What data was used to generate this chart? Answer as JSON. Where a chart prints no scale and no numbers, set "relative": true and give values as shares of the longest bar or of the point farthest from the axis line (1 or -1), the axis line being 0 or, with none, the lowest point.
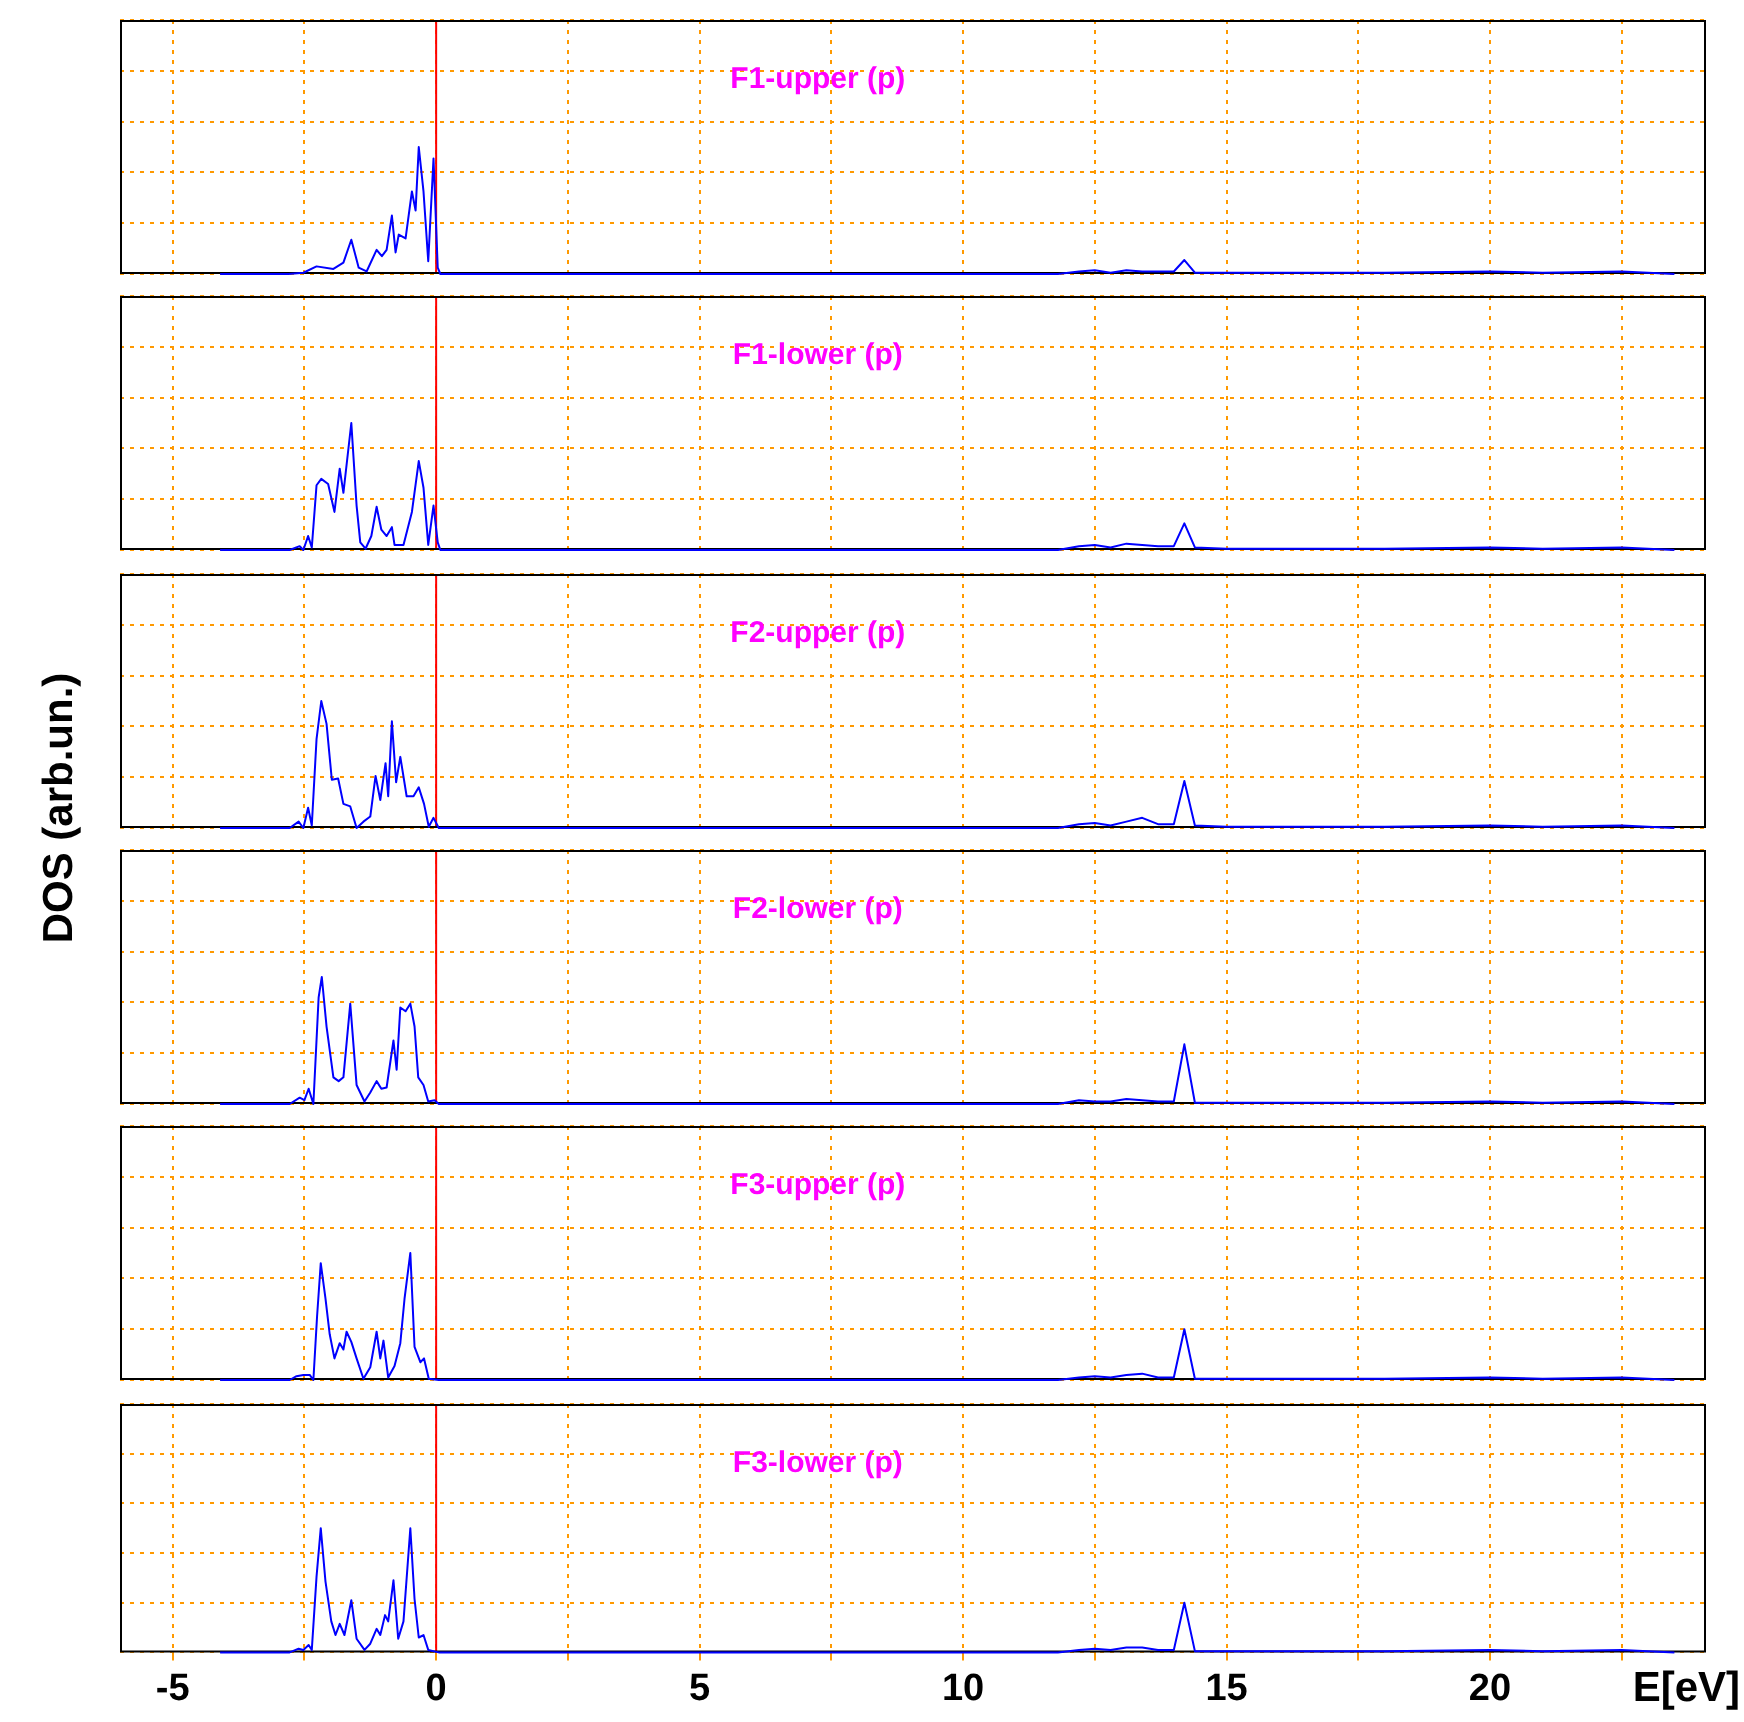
{
  "chart_data": [
    {
      "type": "line",
      "title": "F1-upper (p)",
      "relative": true,
      "grid": true,
      "tick_labels": false,
      "xlim": [
        -6,
        24.1
      ],
      "xticks": [
        -5,
        {
          "value": -2.5,
          "label": null
        },
        0,
        {
          "value": 2.5,
          "label": null
        },
        5,
        {
          "value": 7.5,
          "label": null
        },
        10,
        {
          "value": 12.5,
          "label": null
        },
        15,
        {
          "value": 17.5,
          "label": null
        },
        20,
        {
          "value": 22.5,
          "label": null
        }
      ],
      "ref_lines": [
        {
          "axis": "x",
          "value": 0,
          "color": "#ff0000"
        }
      ],
      "series": [
        {
          "color": "#0000ff",
          "x": [
            -4.1,
            -2.8,
            -2.52,
            -2.27,
            -1.95,
            -1.76,
            -1.61,
            -1.47,
            -1.32,
            -1.13,
            -1.03,
            -0.94,
            -0.84,
            -0.77,
            -0.71,
            -0.58,
            -0.46,
            -0.39,
            -0.33,
            -0.24,
            -0.15,
            -0.05,
            0.03,
            0.08,
            0.3,
            11.8,
            12.2,
            12.5,
            12.8,
            13.1,
            13.4,
            13.7,
            14.0,
            14.2,
            14.4,
            15,
            16,
            18,
            20,
            21,
            22.5,
            23.5
          ],
          "values": [
            0,
            0,
            0.01,
            0.06,
            0.04,
            0.09,
            0.27,
            0.05,
            0.02,
            0.19,
            0.14,
            0.19,
            0.46,
            0.17,
            0.31,
            0.28,
            0.65,
            0.5,
            1,
            0.65,
            0.1,
            0.91,
            0.05,
            0,
            0,
            0,
            0.02,
            0.03,
            0.01,
            0.03,
            0.02,
            0.02,
            0.02,
            0.11,
            0.01,
            0.01,
            0.01,
            0.01,
            0.02,
            0.01,
            0.02,
            0
          ]
        }
      ]
    },
    {
      "type": "line",
      "title": "F1-lower (p)",
      "relative": true,
      "grid": true,
      "tick_labels": false,
      "xlim": [
        -6,
        24.1
      ],
      "xticks": [
        -5,
        {
          "value": -2.5,
          "label": null
        },
        0,
        {
          "value": 2.5,
          "label": null
        },
        5,
        {
          "value": 7.5,
          "label": null
        },
        10,
        {
          "value": 12.5,
          "label": null
        },
        15,
        {
          "value": 17.5,
          "label": null
        },
        20,
        {
          "value": 22.5,
          "label": null
        }
      ],
      "ref_lines": [
        {
          "axis": "x",
          "value": 0,
          "color": "#ff0000"
        }
      ],
      "series": [
        {
          "color": "#0000ff",
          "x": [
            -4.1,
            -2.78,
            -2.59,
            -2.52,
            -2.43,
            -2.36,
            -2.27,
            -2.18,
            -2.05,
            -1.93,
            -1.83,
            -1.76,
            -1.61,
            -1.51,
            -1.44,
            -1.34,
            -1.23,
            -1.13,
            -1.04,
            -0.94,
            -0.84,
            -0.79,
            -0.62,
            -0.46,
            -0.33,
            -0.24,
            -0.15,
            -0.05,
            0.03,
            0.08,
            0.3,
            11.8,
            12.2,
            12.5,
            12.8,
            13.1,
            13.4,
            13.7,
            14.0,
            14.2,
            14.4,
            15,
            16,
            18,
            20,
            21,
            22.5,
            23.5
          ],
          "values": [
            0,
            0,
            0.03,
            0,
            0.11,
            0.02,
            0.51,
            0.56,
            0.52,
            0.3,
            0.64,
            0.45,
            1,
            0.35,
            0.06,
            0.01,
            0.11,
            0.34,
            0.16,
            0.11,
            0.18,
            0.04,
            0.04,
            0.3,
            0.7,
            0.49,
            0.04,
            0.35,
            0.06,
            0,
            0,
            0,
            0.03,
            0.04,
            0.02,
            0.05,
            0.04,
            0.03,
            0.03,
            0.21,
            0.02,
            0.01,
            0.01,
            0.01,
            0.02,
            0.01,
            0.02,
            0
          ]
        }
      ]
    },
    {
      "type": "line",
      "title": "F2-upper (p)",
      "ylabel": "DOS  (arb.un.)",
      "relative": true,
      "grid": true,
      "tick_labels": false,
      "xlim": [
        -6,
        24.1
      ],
      "xticks": [
        -5,
        {
          "value": -2.5,
          "label": null
        },
        0,
        {
          "value": 2.5,
          "label": null
        },
        5,
        {
          "value": 7.5,
          "label": null
        },
        10,
        {
          "value": 12.5,
          "label": null
        },
        15,
        {
          "value": 17.5,
          "label": null
        },
        20,
        {
          "value": 22.5,
          "label": null
        }
      ],
      "ref_lines": [
        {
          "axis": "x",
          "value": 0,
          "color": "#ff0000"
        }
      ],
      "series": [
        {
          "color": "#0000ff",
          "x": [
            -4.1,
            -2.78,
            -2.61,
            -2.52,
            -2.43,
            -2.36,
            -2.27,
            -2.18,
            -2.08,
            -1.98,
            -1.86,
            -1.76,
            -1.63,
            -1.51,
            -1.38,
            -1.25,
            -1.15,
            -1.06,
            -0.96,
            -0.91,
            -0.84,
            -0.76,
            -0.68,
            -0.56,
            -0.43,
            -0.33,
            -0.23,
            -0.14,
            -0.05,
            0.05,
            0.3,
            11.8,
            12.2,
            12.5,
            12.8,
            13.1,
            13.4,
            13.7,
            14.0,
            14.2,
            14.4,
            15,
            16,
            18,
            20,
            21,
            22.5,
            23.5
          ],
          "values": [
            0,
            0,
            0.05,
            0,
            0.16,
            0.02,
            0.7,
            1,
            0.82,
            0.38,
            0.39,
            0.19,
            0.17,
            0,
            0.05,
            0.09,
            0.41,
            0.22,
            0.51,
            0.25,
            0.84,
            0.36,
            0.56,
            0.25,
            0.25,
            0.32,
            0.19,
            0.01,
            0.08,
            0,
            0,
            0,
            0.03,
            0.04,
            0.02,
            0.05,
            0.08,
            0.03,
            0.03,
            0.37,
            0.02,
            0.01,
            0.01,
            0.01,
            0.02,
            0.01,
            0.02,
            0
          ]
        }
      ]
    },
    {
      "type": "line",
      "title": "F2-lower (p)",
      "relative": true,
      "grid": true,
      "tick_labels": false,
      "xlim": [
        -6,
        24.1
      ],
      "xticks": [
        -5,
        {
          "value": -2.5,
          "label": null
        },
        0,
        {
          "value": 2.5,
          "label": null
        },
        5,
        {
          "value": 7.5,
          "label": null
        },
        10,
        {
          "value": 12.5,
          "label": null
        },
        15,
        {
          "value": 17.5,
          "label": null
        },
        20,
        {
          "value": 22.5,
          "label": null
        }
      ],
      "ref_lines": [
        {
          "axis": "x",
          "value": 0,
          "color": "#ff0000"
        }
      ],
      "series": [
        {
          "color": "#0000ff",
          "x": [
            -4.1,
            -2.78,
            -2.59,
            -2.5,
            -2.42,
            -2.33,
            -2.23,
            -2.17,
            -2.08,
            -1.95,
            -1.85,
            -1.76,
            -1.63,
            -1.51,
            -1.36,
            -1.25,
            -1.13,
            -1.04,
            -0.94,
            -0.81,
            -0.75,
            -0.68,
            -0.58,
            -0.49,
            -0.41,
            -0.34,
            -0.24,
            -0.15,
            -0.03,
            0.05,
            0.3,
            11.8,
            12.2,
            12.5,
            12.8,
            13.1,
            13.4,
            13.7,
            14.0,
            14.2,
            14.4,
            15,
            16,
            18,
            20,
            21,
            22.5,
            23.5
          ],
          "values": [
            0,
            0,
            0.05,
            0.03,
            0.12,
            0,
            0.84,
            1,
            0.61,
            0.21,
            0.18,
            0.21,
            0.79,
            0.15,
            0.02,
            0.09,
            0.18,
            0.12,
            0.13,
            0.5,
            0.27,
            0.76,
            0.73,
            0.79,
            0.61,
            0.21,
            0.15,
            0.02,
            0.03,
            0,
            0,
            0,
            0.03,
            0.02,
            0.02,
            0.04,
            0.03,
            0.02,
            0.02,
            0.47,
            0.01,
            0.01,
            0.01,
            0.01,
            0.02,
            0.01,
            0.02,
            0
          ]
        }
      ]
    },
    {
      "type": "line",
      "title": "F3-upper (p)",
      "relative": true,
      "grid": true,
      "tick_labels": false,
      "xlim": [
        -6,
        24.1
      ],
      "xticks": [
        -5,
        {
          "value": -2.5,
          "label": null
        },
        0,
        {
          "value": 2.5,
          "label": null
        },
        5,
        {
          "value": 7.5,
          "label": null
        },
        10,
        {
          "value": 12.5,
          "label": null
        },
        15,
        {
          "value": 17.5,
          "label": null
        },
        20,
        {
          "value": 22.5,
          "label": null
        }
      ],
      "ref_lines": [
        {
          "axis": "x",
          "value": 0,
          "color": "#ff0000"
        }
      ],
      "series": [
        {
          "color": "#0000ff",
          "x": [
            -4.1,
            -2.78,
            -2.65,
            -2.52,
            -2.4,
            -2.33,
            -2.26,
            -2.19,
            -2.1,
            -2.02,
            -1.93,
            -1.83,
            -1.76,
            -1.7,
            -1.61,
            -1.51,
            -1.38,
            -1.25,
            -1.13,
            -1.06,
            -1.0,
            -0.91,
            -0.79,
            -0.68,
            -0.6,
            -0.49,
            -0.41,
            -0.3,
            -0.23,
            -0.14,
            0.05,
            0.3,
            11.8,
            12.2,
            12.5,
            12.8,
            13.1,
            13.4,
            13.7,
            14.0,
            14.2,
            14.4,
            15,
            16,
            18,
            20,
            21,
            22.5,
            23.5
          ],
          "values": [
            0,
            0,
            0.03,
            0.04,
            0.04,
            0,
            0.5,
            0.92,
            0.64,
            0.36,
            0.17,
            0.29,
            0.24,
            0.38,
            0.3,
            0.17,
            0.01,
            0.1,
            0.38,
            0.17,
            0.31,
            0.02,
            0.11,
            0.29,
            0.64,
            1,
            0.26,
            0.14,
            0.17,
            0.01,
            0,
            0,
            0,
            0.02,
            0.03,
            0.02,
            0.04,
            0.05,
            0.02,
            0.02,
            0.4,
            0.01,
            0.01,
            0.01,
            0.01,
            0.02,
            0.01,
            0.02,
            0
          ]
        }
      ]
    },
    {
      "type": "line",
      "title": "F3-lower (p)",
      "xlabel": "E[eV]",
      "relative": true,
      "grid": true,
      "tick_labels": "x",
      "xlim": [
        -6,
        24.1
      ],
      "xticks": [
        -5,
        {
          "value": -2.5,
          "label": null
        },
        0,
        {
          "value": 2.5,
          "label": null
        },
        5,
        {
          "value": 7.5,
          "label": null
        },
        10,
        {
          "value": 12.5,
          "label": null
        },
        15,
        {
          "value": 17.5,
          "label": null
        },
        20,
        {
          "value": 22.5,
          "label": null
        }
      ],
      "ref_lines": [
        {
          "axis": "x",
          "value": 0,
          "color": "#ff0000"
        }
      ],
      "series": [
        {
          "color": "#0000ff",
          "x": [
            -4.1,
            -2.78,
            -2.61,
            -2.52,
            -2.42,
            -2.36,
            -2.27,
            -2.19,
            -2.1,
            -1.99,
            -1.91,
            -1.83,
            -1.74,
            -1.61,
            -1.51,
            -1.36,
            -1.25,
            -1.13,
            -1.06,
            -0.97,
            -0.91,
            -0.81,
            -0.72,
            -0.62,
            -0.49,
            -0.41,
            -0.33,
            -0.24,
            -0.15,
            0.05,
            0.3,
            11.8,
            12.2,
            12.5,
            12.8,
            13.1,
            13.4,
            13.7,
            14.0,
            14.2,
            14.4,
            15,
            16,
            18,
            20,
            21,
            22.5,
            23.5
          ],
          "values": [
            0,
            0,
            0.03,
            0.02,
            0.06,
            0.02,
            0.61,
            1,
            0.57,
            0.25,
            0.14,
            0.23,
            0.14,
            0.42,
            0.11,
            0.02,
            0.07,
            0.19,
            0.14,
            0.3,
            0.25,
            0.58,
            0.11,
            0.25,
            1,
            0.43,
            0.12,
            0.14,
            0.02,
            0,
            0,
            0,
            0.02,
            0.03,
            0.02,
            0.04,
            0.04,
            0.02,
            0.02,
            0.4,
            0.01,
            0.01,
            0.01,
            0.01,
            0.02,
            0.01,
            0.02,
            0
          ]
        }
      ]
    }
  ]
}
